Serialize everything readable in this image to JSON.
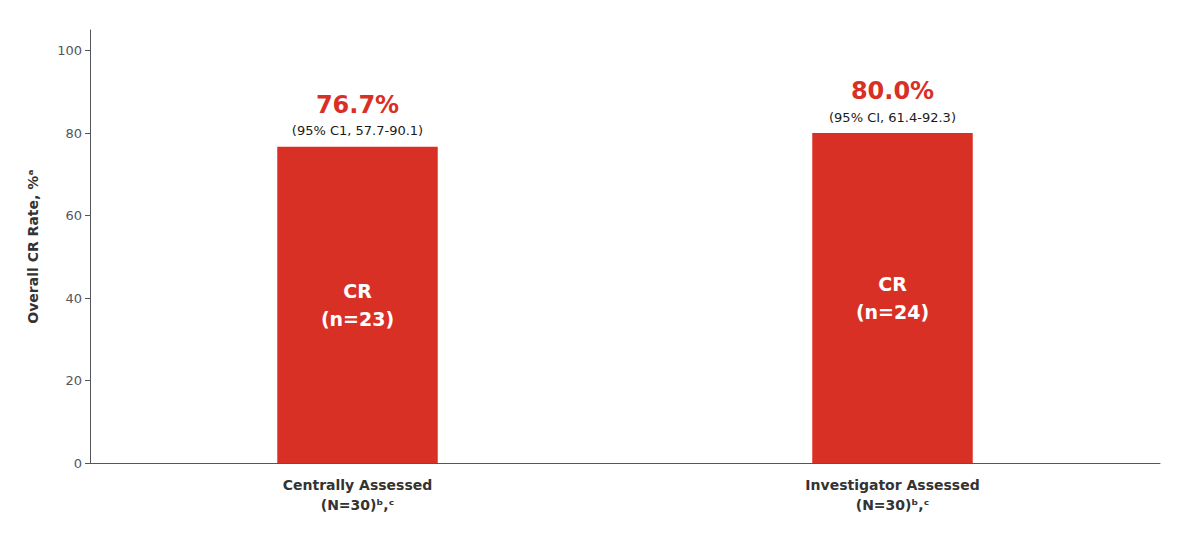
{
  "chart_data": {
    "type": "bar",
    "categories": [
      "Centrally Assessed\n(N=30)ᵇ,ᶜ",
      "Investigator Assessed\n(N=30)ᵇ,ᶜ"
    ],
    "values": [
      76.7,
      80.0
    ],
    "value_labels": [
      "76.7%",
      "80.0%"
    ],
    "data_labels": true,
    "color": "#D93025",
    "inside_labels": [
      "CR\n(n=23)",
      "CR\n(n=24)"
    ],
    "ci_labels": [
      "(95% C1, 57.7-90.1)",
      "(95% CI, 61.4-92.3)"
    ],
    "ylabel": "Overall CR Rate, %ᵃ",
    "ylim": [
      0,
      105
    ],
    "yticks": [
      0,
      20,
      40,
      60,
      80,
      100
    ],
    "grid": false
  }
}
